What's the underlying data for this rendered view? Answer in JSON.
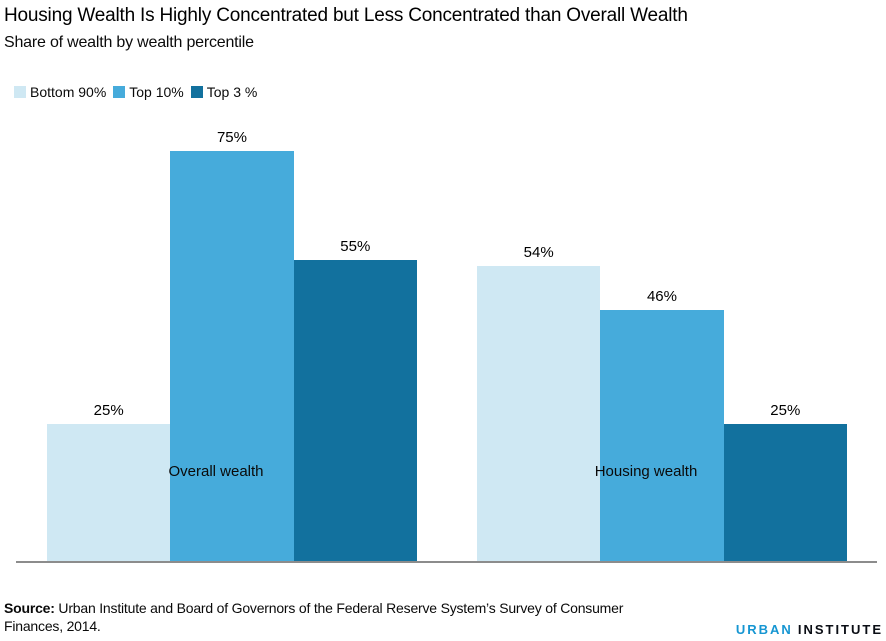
{
  "header": {
    "title": "Housing Wealth Is Highly Concentrated but Less Concentrated than Overall Wealth",
    "subtitle": "Share of wealth by wealth percentile"
  },
  "chart_data": {
    "type": "bar",
    "title": "Housing Wealth Is Highly Concentrated but Less Concentrated than Overall Wealth",
    "subtitle": "Share of wealth by wealth percentile",
    "categories": [
      "Overall wealth",
      "Housing wealth"
    ],
    "series": [
      {
        "name": "Bottom 90%",
        "color": "#cfe8f3",
        "values": [
          25,
          54
        ],
        "labels": [
          "25%",
          "54%"
        ]
      },
      {
        "name": "Top 10%",
        "color": "#46abdb",
        "values": [
          75,
          46
        ],
        "labels": [
          "75%",
          "46%"
        ]
      },
      {
        "name": "Top 3 %",
        "color": "#12719e",
        "values": [
          55,
          25
        ],
        "labels": [
          "55%",
          "25%"
        ]
      }
    ],
    "value_unit": "%",
    "ylim": [
      0,
      100
    ],
    "grid": false,
    "legend_position": "top-left",
    "axis_line_color": "#8c8c8c"
  },
  "footer": {
    "source_label": "Source:",
    "source_text": " Urban Institute and Board of Governors of the Federal Reserve System’s Survey of Consumer Finances, 2014.",
    "logo": {
      "part1": "URBAN",
      "part2": "INSTITUTE",
      "part1_color": "#1696d2",
      "part2_color": "#0a0d14"
    }
  }
}
